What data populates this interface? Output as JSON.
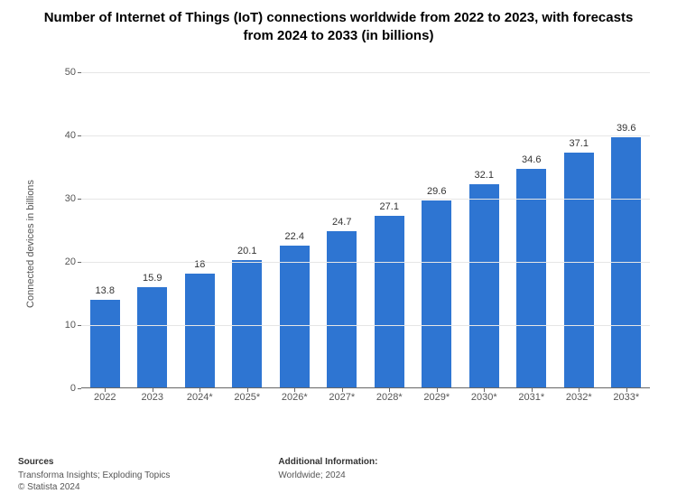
{
  "title": "Number of Internet of Things (IoT) connections worldwide from 2022 to 2023, with forecasts from 2024 to 2033 (in billions)",
  "title_fontsize": 15,
  "chart": {
    "type": "bar",
    "ylabel": "Connected devices in billions",
    "ylim": [
      0,
      50
    ],
    "ytick_step": 10,
    "yticks": [
      0,
      10,
      20,
      30,
      40,
      50
    ],
    "categories": [
      "2022",
      "2023",
      "2024*",
      "2025*",
      "2026*",
      "2027*",
      "2028*",
      "2029*",
      "2030*",
      "2031*",
      "2032*",
      "2033*"
    ],
    "values": [
      13.8,
      15.9,
      18,
      20.1,
      22.4,
      24.7,
      27.1,
      29.6,
      32.1,
      34.6,
      37.1,
      39.6
    ],
    "value_labels": [
      "13.8",
      "15.9",
      "18",
      "20.1",
      "22.4",
      "24.7",
      "27.1",
      "29.6",
      "32.1",
      "34.6",
      "37.1",
      "39.6"
    ],
    "bar_color": "#2e75d2",
    "bar_width_ratio": 0.62,
    "grid_color": "#e6e6e6",
    "background_color": "#ffffff",
    "axis_color": "#666666",
    "label_fontsize": 11,
    "tick_fontsize": 11,
    "value_label_fontsize": 11
  },
  "footer": {
    "sources_heading": "Sources",
    "sources_line1": "Transforma Insights; Exploding Topics",
    "sources_line2": "© Statista 2024",
    "additional_heading": "Additional Information:",
    "additional_line1": "Worldwide; 2024"
  }
}
